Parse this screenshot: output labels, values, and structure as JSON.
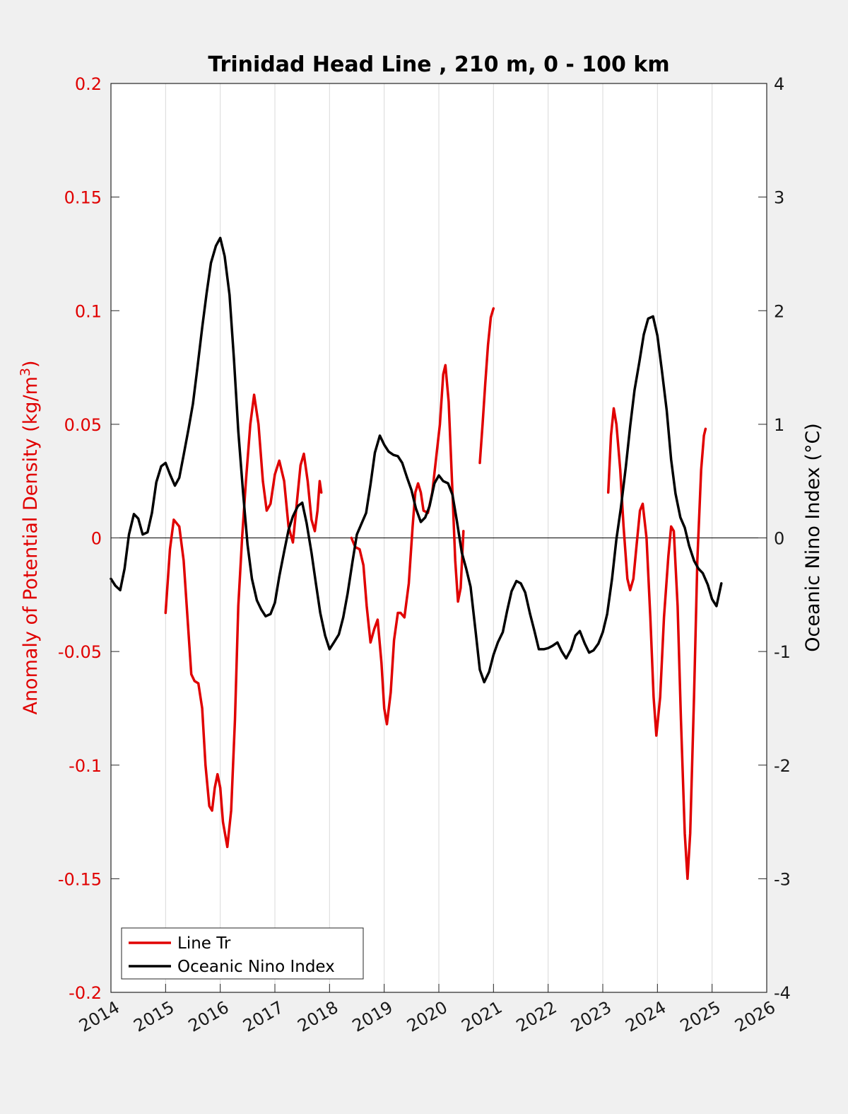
{
  "chart_data": {
    "type": "line",
    "title": "Trinidad Head Line , 210 m, 0 - 100 km",
    "xlabel": "",
    "ylabel_left": "Anomaly of Potential Density (kg/m",
    "ylabel_left_sup": "3",
    "ylabel_left_close": ")",
    "ylabel_right": "Oceanic Nino Index (°C)",
    "xlim": [
      2014,
      2026
    ],
    "ylim_left": [
      -0.2,
      0.2
    ],
    "ylim_right": [
      -4,
      4
    ],
    "x_ticks": [
      "2014",
      "2015",
      "2016",
      "2017",
      "2018",
      "2019",
      "2020",
      "2021",
      "2022",
      "2023",
      "2024",
      "2025",
      "2026"
    ],
    "y_ticks_left": [
      "0.2",
      "0.15",
      "0.1",
      "0.05",
      "0",
      "-0.05",
      "-0.1",
      "-0.15",
      "-0.2"
    ],
    "y_ticks_right": [
      "4",
      "3",
      "2",
      "1",
      "0",
      "-1",
      "-2",
      "-3",
      "-4"
    ],
    "grid": "vertical",
    "zero_line": 0,
    "legend_position": "bottom-left",
    "colors": {
      "left_axis": "#e00000",
      "line_tr": "#e00000",
      "oni": "#000000",
      "grid": "#d9d9d9",
      "background": "#f0f0f0"
    },
    "series": [
      {
        "name": "Line Tr",
        "axis": "left",
        "segments": [
          [
            [
              2015.0,
              -0.033
            ],
            [
              2015.08,
              -0.005
            ],
            [
              2015.15,
              0.008
            ],
            [
              2015.25,
              0.005
            ],
            [
              2015.33,
              -0.01
            ],
            [
              2015.4,
              -0.035
            ],
            [
              2015.47,
              -0.06
            ],
            [
              2015.53,
              -0.063
            ],
            [
              2015.6,
              -0.064
            ],
            [
              2015.67,
              -0.075
            ],
            [
              2015.73,
              -0.1
            ],
            [
              2015.8,
              -0.118
            ],
            [
              2015.85,
              -0.12
            ],
            [
              2015.9,
              -0.11
            ],
            [
              2015.95,
              -0.104
            ],
            [
              2016.0,
              -0.11
            ],
            [
              2016.05,
              -0.125
            ],
            [
              2016.13,
              -0.136
            ],
            [
              2016.2,
              -0.12
            ],
            [
              2016.27,
              -0.08
            ],
            [
              2016.33,
              -0.03
            ],
            [
              2016.4,
              0.0
            ],
            [
              2016.47,
              0.025
            ],
            [
              2016.55,
              0.05
            ],
            [
              2016.62,
              0.063
            ],
            [
              2016.7,
              0.05
            ],
            [
              2016.78,
              0.025
            ],
            [
              2016.85,
              0.012
            ],
            [
              2016.92,
              0.015
            ],
            [
              2017.0,
              0.028
            ],
            [
              2017.08,
              0.034
            ],
            [
              2017.17,
              0.025
            ],
            [
              2017.25,
              0.005
            ],
            [
              2017.33,
              -0.002
            ],
            [
              2017.4,
              0.015
            ],
            [
              2017.47,
              0.032
            ],
            [
              2017.53,
              0.037
            ],
            [
              2017.6,
              0.025
            ],
            [
              2017.67,
              0.008
            ],
            [
              2017.73,
              0.003
            ],
            [
              2017.78,
              0.012
            ],
            [
              2017.82,
              0.025
            ],
            [
              2017.85,
              0.02
            ]
          ],
          [
            [
              2018.4,
              0.0
            ],
            [
              2018.47,
              -0.004
            ],
            [
              2018.55,
              -0.005
            ],
            [
              2018.62,
              -0.012
            ],
            [
              2018.68,
              -0.03
            ],
            [
              2018.75,
              -0.046
            ],
            [
              2018.82,
              -0.04
            ],
            [
              2018.88,
              -0.036
            ],
            [
              2018.95,
              -0.055
            ],
            [
              2019.0,
              -0.075
            ],
            [
              2019.05,
              -0.082
            ],
            [
              2019.12,
              -0.068
            ],
            [
              2019.18,
              -0.045
            ],
            [
              2019.25,
              -0.033
            ],
            [
              2019.3,
              -0.033
            ],
            [
              2019.37,
              -0.035
            ],
            [
              2019.45,
              -0.02
            ],
            [
              2019.52,
              0.005
            ],
            [
              2019.57,
              0.02
            ],
            [
              2019.62,
              0.024
            ],
            [
              2019.67,
              0.02
            ],
            [
              2019.72,
              0.012
            ],
            [
              2019.8,
              0.011
            ],
            [
              2019.88,
              0.02
            ],
            [
              2019.95,
              0.035
            ],
            [
              2020.02,
              0.05
            ],
            [
              2020.08,
              0.072
            ],
            [
              2020.12,
              0.076
            ],
            [
              2020.18,
              0.06
            ],
            [
              2020.25,
              0.02
            ],
            [
              2020.3,
              -0.01
            ],
            [
              2020.35,
              -0.028
            ],
            [
              2020.4,
              -0.022
            ],
            [
              2020.45,
              0.003
            ]
          ],
          [
            [
              2020.75,
              0.033
            ],
            [
              2020.8,
              0.05
            ],
            [
              2020.85,
              0.068
            ],
            [
              2020.9,
              0.085
            ],
            [
              2020.95,
              0.097
            ],
            [
              2021.0,
              0.101
            ]
          ],
          [
            [
              2023.1,
              0.02
            ],
            [
              2023.15,
              0.045
            ],
            [
              2023.2,
              0.057
            ],
            [
              2023.25,
              0.05
            ],
            [
              2023.32,
              0.03
            ],
            [
              2023.38,
              0.005
            ],
            [
              2023.45,
              -0.018
            ],
            [
              2023.5,
              -0.023
            ],
            [
              2023.56,
              -0.018
            ],
            [
              2023.62,
              -0.003
            ],
            [
              2023.68,
              0.012
            ],
            [
              2023.73,
              0.015
            ],
            [
              2023.8,
              0.0
            ],
            [
              2023.87,
              -0.035
            ],
            [
              2023.93,
              -0.07
            ],
            [
              2023.98,
              -0.087
            ],
            [
              2024.05,
              -0.07
            ],
            [
              2024.12,
              -0.035
            ],
            [
              2024.2,
              -0.008
            ],
            [
              2024.25,
              0.005
            ],
            [
              2024.3,
              0.003
            ],
            [
              2024.37,
              -0.03
            ],
            [
              2024.43,
              -0.08
            ],
            [
              2024.5,
              -0.13
            ],
            [
              2024.55,
              -0.15
            ],
            [
              2024.6,
              -0.13
            ],
            [
              2024.67,
              -0.07
            ],
            [
              2024.73,
              -0.01
            ],
            [
              2024.8,
              0.03
            ],
            [
              2024.85,
              0.045
            ],
            [
              2024.88,
              0.048
            ]
          ]
        ]
      },
      {
        "name": "Oceanic Nino Index",
        "axis": "right",
        "segments": [
          [
            [
              2014.0,
              -0.36
            ],
            [
              2014.08,
              -0.42
            ],
            [
              2014.17,
              -0.46
            ],
            [
              2014.25,
              -0.27
            ],
            [
              2014.33,
              0.03
            ],
            [
              2014.42,
              0.21
            ],
            [
              2014.5,
              0.17
            ],
            [
              2014.58,
              0.03
            ],
            [
              2014.67,
              0.05
            ],
            [
              2014.75,
              0.22
            ],
            [
              2014.83,
              0.49
            ],
            [
              2014.92,
              0.63
            ],
            [
              2015.0,
              0.66
            ],
            [
              2015.08,
              0.56
            ],
            [
              2015.17,
              0.46
            ],
            [
              2015.25,
              0.53
            ],
            [
              2015.33,
              0.73
            ],
            [
              2015.42,
              0.96
            ],
            [
              2015.5,
              1.18
            ],
            [
              2015.58,
              1.49
            ],
            [
              2015.67,
              1.85
            ],
            [
              2015.75,
              2.15
            ],
            [
              2015.83,
              2.42
            ],
            [
              2015.92,
              2.57
            ],
            [
              2016.0,
              2.64
            ],
            [
              2016.08,
              2.48
            ],
            [
              2016.17,
              2.14
            ],
            [
              2016.25,
              1.58
            ],
            [
              2016.33,
              0.94
            ],
            [
              2016.42,
              0.39
            ],
            [
              2016.5,
              -0.06
            ],
            [
              2016.58,
              -0.36
            ],
            [
              2016.67,
              -0.55
            ],
            [
              2016.75,
              -0.63
            ],
            [
              2016.83,
              -0.69
            ],
            [
              2016.92,
              -0.67
            ],
            [
              2017.0,
              -0.57
            ],
            [
              2017.08,
              -0.34
            ],
            [
              2017.17,
              -0.12
            ],
            [
              2017.25,
              0.07
            ],
            [
              2017.33,
              0.19
            ],
            [
              2017.42,
              0.28
            ],
            [
              2017.5,
              0.31
            ],
            [
              2017.58,
              0.13
            ],
            [
              2017.67,
              -0.13
            ],
            [
              2017.75,
              -0.4
            ],
            [
              2017.83,
              -0.66
            ],
            [
              2017.92,
              -0.86
            ],
            [
              2018.0,
              -0.98
            ],
            [
              2018.08,
              -0.92
            ],
            [
              2018.17,
              -0.85
            ],
            [
              2018.25,
              -0.7
            ],
            [
              2018.33,
              -0.49
            ],
            [
              2018.42,
              -0.21
            ],
            [
              2018.5,
              0.03
            ],
            [
              2018.58,
              0.12
            ],
            [
              2018.67,
              0.22
            ],
            [
              2018.75,
              0.47
            ],
            [
              2018.83,
              0.75
            ],
            [
              2018.92,
              0.9
            ],
            [
              2019.0,
              0.82
            ],
            [
              2019.08,
              0.76
            ],
            [
              2019.17,
              0.73
            ],
            [
              2019.25,
              0.72
            ],
            [
              2019.33,
              0.66
            ],
            [
              2019.42,
              0.53
            ],
            [
              2019.5,
              0.42
            ],
            [
              2019.58,
              0.26
            ],
            [
              2019.67,
              0.14
            ],
            [
              2019.75,
              0.18
            ],
            [
              2019.83,
              0.28
            ],
            [
              2019.92,
              0.48
            ],
            [
              2020.0,
              0.55
            ],
            [
              2020.08,
              0.5
            ],
            [
              2020.17,
              0.48
            ],
            [
              2020.25,
              0.38
            ],
            [
              2020.33,
              0.15
            ],
            [
              2020.42,
              -0.13
            ],
            [
              2020.5,
              -0.27
            ],
            [
              2020.58,
              -0.43
            ],
            [
              2020.67,
              -0.81
            ],
            [
              2020.75,
              -1.16
            ],
            [
              2020.83,
              -1.27
            ],
            [
              2020.92,
              -1.18
            ],
            [
              2021.0,
              -1.03
            ],
            [
              2021.08,
              -0.92
            ],
            [
              2021.17,
              -0.83
            ],
            [
              2021.25,
              -0.64
            ],
            [
              2021.33,
              -0.47
            ],
            [
              2021.42,
              -0.38
            ],
            [
              2021.5,
              -0.4
            ],
            [
              2021.58,
              -0.48
            ],
            [
              2021.67,
              -0.67
            ],
            [
              2021.75,
              -0.82
            ],
            [
              2021.83,
              -0.98
            ],
            [
              2021.92,
              -0.98
            ],
            [
              2022.0,
              -0.97
            ],
            [
              2022.08,
              -0.95
            ],
            [
              2022.17,
              -0.92
            ],
            [
              2022.25,
              -1.0
            ],
            [
              2022.33,
              -1.06
            ],
            [
              2022.42,
              -0.98
            ],
            [
              2022.5,
              -0.86
            ],
            [
              2022.58,
              -0.82
            ],
            [
              2022.67,
              -0.93
            ],
            [
              2022.75,
              -1.01
            ],
            [
              2022.83,
              -0.99
            ],
            [
              2022.92,
              -0.93
            ],
            [
              2023.0,
              -0.83
            ],
            [
              2023.08,
              -0.67
            ],
            [
              2023.17,
              -0.36
            ],
            [
              2023.25,
              -0.01
            ],
            [
              2023.33,
              0.26
            ],
            [
              2023.42,
              0.62
            ],
            [
              2023.5,
              0.98
            ],
            [
              2023.58,
              1.3
            ],
            [
              2023.67,
              1.55
            ],
            [
              2023.75,
              1.79
            ],
            [
              2023.83,
              1.93
            ],
            [
              2023.92,
              1.95
            ],
            [
              2024.0,
              1.78
            ],
            [
              2024.08,
              1.48
            ],
            [
              2024.17,
              1.12
            ],
            [
              2024.25,
              0.69
            ],
            [
              2024.33,
              0.39
            ],
            [
              2024.42,
              0.18
            ],
            [
              2024.5,
              0.09
            ],
            [
              2024.58,
              -0.07
            ],
            [
              2024.67,
              -0.2
            ],
            [
              2024.75,
              -0.27
            ],
            [
              2024.83,
              -0.31
            ],
            [
              2024.92,
              -0.41
            ],
            [
              2025.0,
              -0.54
            ],
            [
              2025.08,
              -0.6
            ],
            [
              2025.17,
              -0.4
            ]
          ]
        ]
      }
    ]
  }
}
